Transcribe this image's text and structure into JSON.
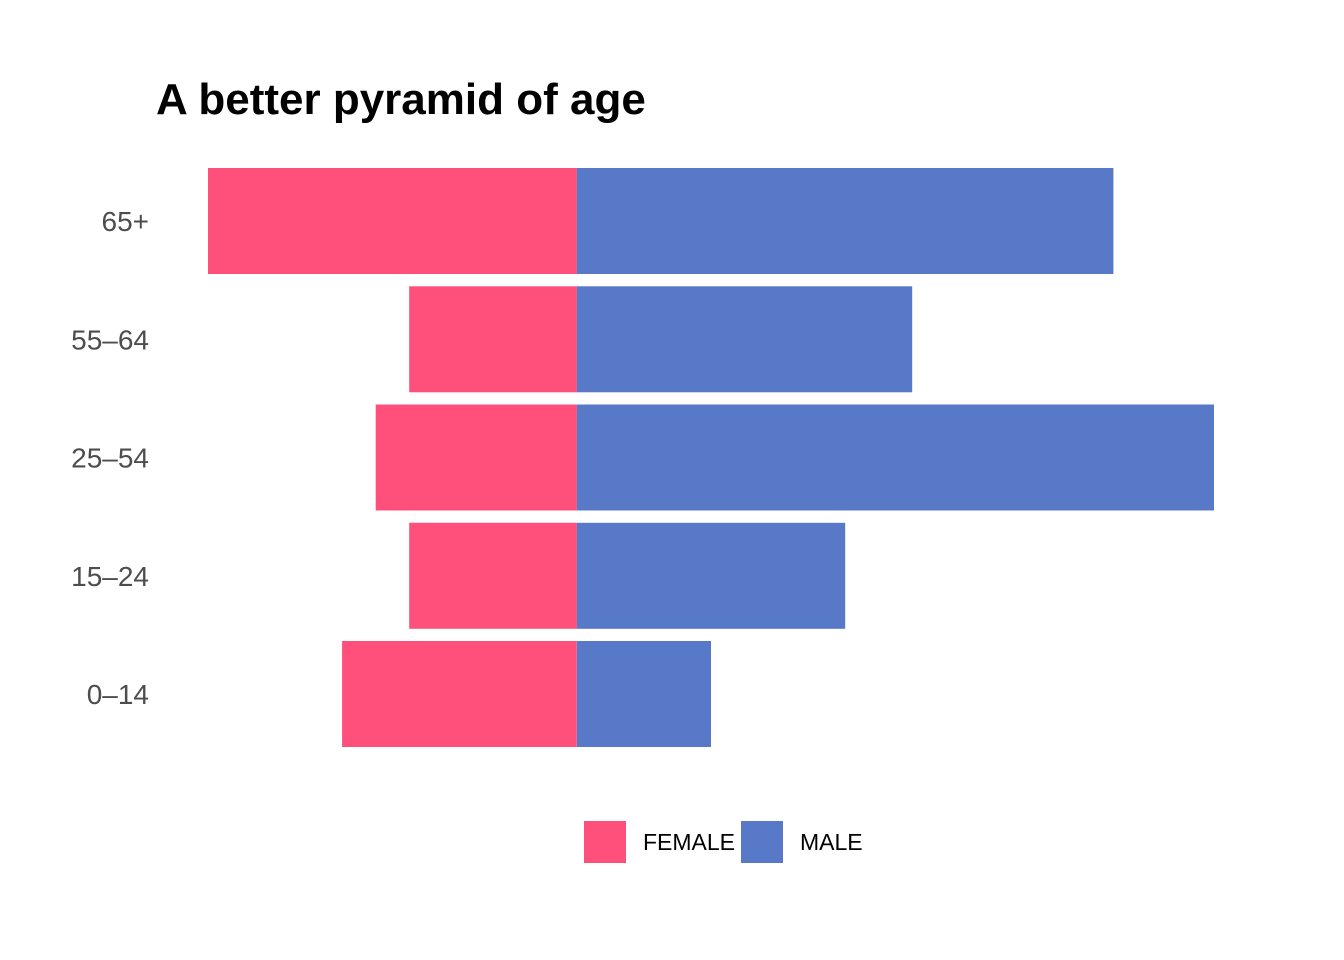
{
  "chart_data": {
    "type": "bar",
    "orientation": "horizontal",
    "stacked": "diverging",
    "title": "A better pyramid of age",
    "xlabel": "",
    "ylabel": "",
    "categories": [
      "65+",
      "55–64",
      "25–54",
      "15–24",
      "0–14"
    ],
    "series": [
      {
        "name": "FEMALE",
        "color": "#ff4f7b",
        "values": [
          -11,
          -5,
          -6,
          -5,
          -7
        ]
      },
      {
        "name": "MALE",
        "color": "#5878c8",
        "values": [
          16,
          10,
          19,
          8,
          4
        ]
      }
    ],
    "xlim": [
      -11,
      19
    ],
    "grid": false,
    "legend": "bottom"
  }
}
